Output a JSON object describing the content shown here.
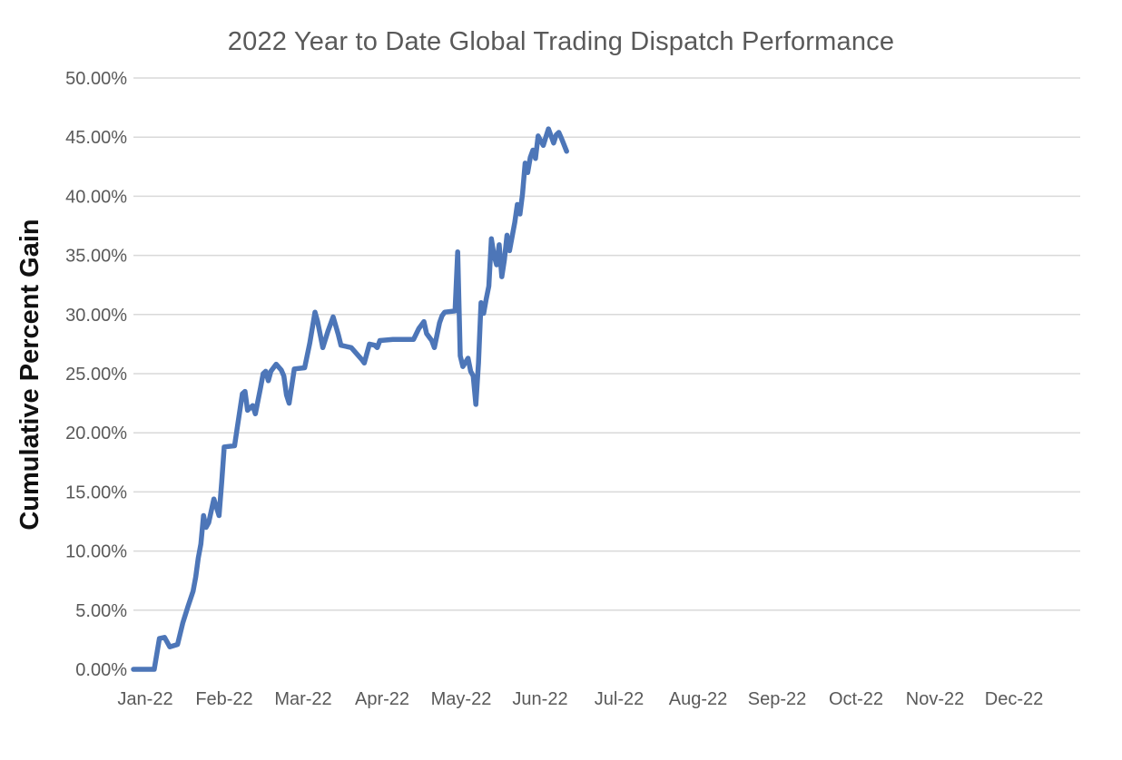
{
  "chart": {
    "title": "2022 Year to Date Global Trading Dispatch Performance",
    "y_axis_title": "Cumulative Percent Gain"
  },
  "chart_data": {
    "type": "line",
    "title": "2022 Year to Date Global Trading Dispatch Performance",
    "xlabel": "",
    "ylabel": "Cumulative Percent Gain",
    "ylim": [
      0,
      50
    ],
    "grid": true,
    "legend": false,
    "gridline_color": "#D9D9D9",
    "text_color": "#595959",
    "x_unit": "days_since_jan1_2022",
    "x_range_days": [
      0,
      365
    ],
    "x_tick_labels": [
      "Jan-22",
      "Feb-22",
      "Mar-22",
      "Apr-22",
      "May-22",
      "Jun-22",
      "Jul-22",
      "Aug-22",
      "Sep-22",
      "Oct-22",
      "Nov-22",
      "Dec-22"
    ],
    "y_ticks": [
      {
        "value": 0,
        "label": "0.00%"
      },
      {
        "value": 5,
        "label": "5.00%"
      },
      {
        "value": 10,
        "label": "10.00%"
      },
      {
        "value": 15,
        "label": "15.00%"
      },
      {
        "value": 20,
        "label": "20.00%"
      },
      {
        "value": 25,
        "label": "25.00%"
      },
      {
        "value": 30,
        "label": "30.00%"
      },
      {
        "value": 35,
        "label": "35.00%"
      },
      {
        "value": 40,
        "label": "40.00%"
      },
      {
        "value": 45,
        "label": "45.00%"
      },
      {
        "value": 50,
        "label": "50.00%"
      }
    ],
    "series": [
      {
        "name": "Cumulative Percent Gain",
        "color": "#4D76B8",
        "points": [
          [
            0,
            0
          ],
          [
            8,
            0
          ],
          [
            10,
            2.6
          ],
          [
            12,
            2.7
          ],
          [
            14,
            1.9
          ],
          [
            17,
            2.1
          ],
          [
            19,
            3.9
          ],
          [
            21,
            5.3
          ],
          [
            23,
            6.6
          ],
          [
            24,
            7.8
          ],
          [
            25,
            9.4
          ],
          [
            26,
            10.6
          ],
          [
            27,
            13.0
          ],
          [
            28,
            12.0
          ],
          [
            29,
            12.4
          ],
          [
            31,
            14.4
          ],
          [
            33,
            13.0
          ],
          [
            34,
            15.8
          ],
          [
            35,
            18.8
          ],
          [
            39,
            18.9
          ],
          [
            40,
            20.4
          ],
          [
            42,
            23.3
          ],
          [
            43,
            23.5
          ],
          [
            44,
            21.9
          ],
          [
            46,
            22.3
          ],
          [
            47,
            21.6
          ],
          [
            49,
            23.8
          ],
          [
            50,
            25.0
          ],
          [
            51,
            25.2
          ],
          [
            52,
            24.4
          ],
          [
            53,
            25.2
          ],
          [
            55,
            25.8
          ],
          [
            57,
            25.3
          ],
          [
            58,
            24.8
          ],
          [
            59,
            23.2
          ],
          [
            60,
            22.5
          ],
          [
            62,
            25.4
          ],
          [
            66,
            25.5
          ],
          [
            68,
            27.6
          ],
          [
            70,
            30.2
          ],
          [
            71,
            29.4
          ],
          [
            73,
            27.2
          ],
          [
            75,
            28.6
          ],
          [
            77,
            29.8
          ],
          [
            79,
            28.3
          ],
          [
            80,
            27.4
          ],
          [
            82,
            27.3
          ],
          [
            84,
            27.2
          ],
          [
            86,
            26.7
          ],
          [
            88,
            26.2
          ],
          [
            89,
            25.9
          ],
          [
            91,
            27.5
          ],
          [
            93,
            27.4
          ],
          [
            94,
            27.2
          ],
          [
            95,
            27.8
          ],
          [
            100,
            27.9
          ],
          [
            108,
            27.9
          ],
          [
            110,
            28.8
          ],
          [
            112,
            29.4
          ],
          [
            113,
            28.4
          ],
          [
            115,
            27.8
          ],
          [
            116,
            27.2
          ],
          [
            118,
            29.3
          ],
          [
            119,
            29.9
          ],
          [
            120,
            30.2
          ],
          [
            124,
            30.3
          ],
          [
            125,
            35.3
          ],
          [
            126,
            26.5
          ],
          [
            127,
            25.6
          ],
          [
            129,
            26.3
          ],
          [
            130,
            25.2
          ],
          [
            131,
            24.8
          ],
          [
            132,
            22.4
          ],
          [
            133,
            25.9
          ],
          [
            134,
            31.0
          ],
          [
            135,
            30.1
          ],
          [
            136,
            31.3
          ],
          [
            137,
            32.4
          ],
          [
            138,
            36.4
          ],
          [
            139,
            35.0
          ],
          [
            140,
            34.2
          ],
          [
            141,
            35.9
          ],
          [
            142,
            33.2
          ],
          [
            143,
            34.6
          ],
          [
            144,
            36.7
          ],
          [
            145,
            35.4
          ],
          [
            146,
            36.6
          ],
          [
            147,
            37.8
          ],
          [
            148,
            39.3
          ],
          [
            149,
            38.5
          ],
          [
            150,
            40.2
          ],
          [
            151,
            42.8
          ],
          [
            152,
            42.0
          ],
          [
            153,
            43.3
          ],
          [
            154,
            43.9
          ],
          [
            155,
            43.2
          ],
          [
            156,
            45.1
          ],
          [
            158,
            44.3
          ],
          [
            159,
            45.0
          ],
          [
            160,
            45.7
          ],
          [
            162,
            44.5
          ],
          [
            163,
            45.2
          ],
          [
            164,
            45.4
          ],
          [
            165,
            44.9
          ],
          [
            167,
            43.8
          ]
        ]
      }
    ]
  }
}
